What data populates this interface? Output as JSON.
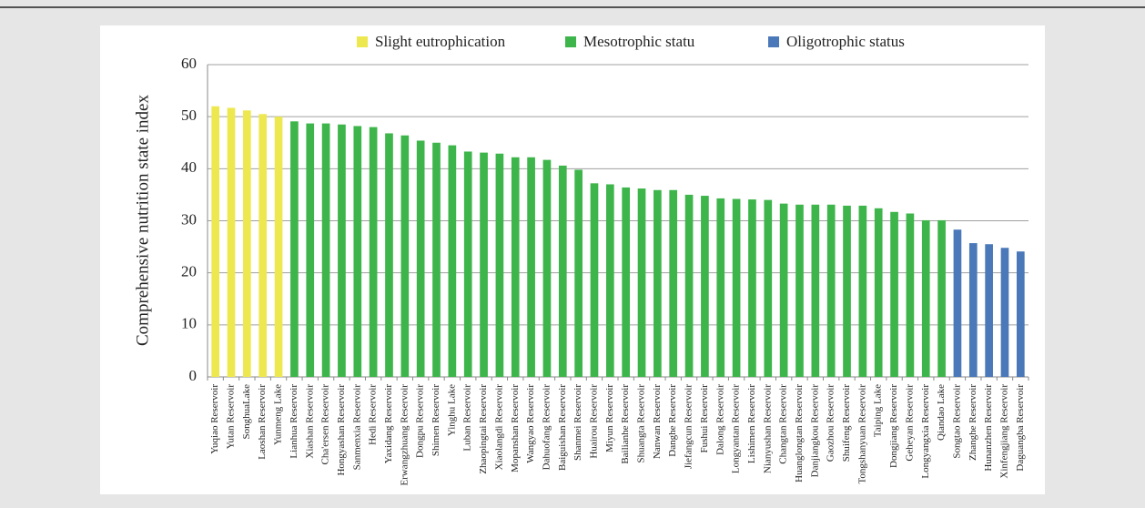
{
  "chart_data": {
    "type": "bar",
    "y_label": "Comprehensive nutrition state index",
    "categories": [
      "Yuqiao Reservoir",
      "Yutan Reservoir",
      "SonghuaLake",
      "Laoshan Reservoir",
      "Yunmeng Lake",
      "Lianhua Reservoir",
      "Xiashan Reservoir",
      "Cha'ersen Reservoir",
      "Hongyashan Reservoir",
      "Sanmenxia Reservoir",
      "Hedi Reservoir",
      "Yaxidang Reservoir",
      "Erwangzhuang Reservoir",
      "Dongpu Reservoir",
      "Shimen Reservoir",
      "Yinghu Lake",
      "Luban Reservoir",
      "Zhaopingtai Reservoir",
      "Xiaolangdi Reservoir",
      "Mopanshan Reservoir",
      "Wangyao Reservoir",
      "Dahuofang Reservoir",
      "Baiguishan Reservoir",
      "Shanmei Reservoir",
      "Huairou Reservoir",
      "Miyun Reservoir",
      "Bailianhe Reservoir",
      "Shuangta Reservoir",
      "Nanwan Reservoir",
      "Danghe Reservoir",
      "Jiefangcun Reservoir",
      "Fushui Reservoir",
      "Dalong Reservoir",
      "Longyantan Reservoir",
      "Lishimen Reservoir",
      "Nianyushan Reservoir",
      "Changtan Reservoir",
      "Huanglongtan Reservoir",
      "Danjiangkou Reservoir",
      "Gaozhou Reservoir",
      "Shuifeng Reservoir",
      "Tongshanyuan Reservoir",
      "Taiping Lake",
      "Dongjiang Reservoir",
      "Geheyan Reservoir",
      "Longyangxia Reservoir",
      "Qiandao Lake",
      "Songtao Reservoir",
      "Zhanghe Reservoir",
      "Hunanzhen Reservoir",
      "Xinfengjiang Reservoir",
      "Daguangba Reservoir"
    ],
    "series": [
      {
        "name": "Slight eutrophication",
        "color": "#ede84f",
        "values": [
          52.0,
          51.7,
          51.2,
          50.5,
          50.0,
          null,
          null,
          null,
          null,
          null,
          null,
          null,
          null,
          null,
          null,
          null,
          null,
          null,
          null,
          null,
          null,
          null,
          null,
          null,
          null,
          null,
          null,
          null,
          null,
          null,
          null,
          null,
          null,
          null,
          null,
          null,
          null,
          null,
          null,
          null,
          null,
          null,
          null,
          null,
          null,
          null,
          null,
          null,
          null,
          null,
          null,
          null
        ]
      },
      {
        "name": "Mesotrophic statu",
        "color": "#3db54a",
        "values": [
          null,
          null,
          null,
          null,
          null,
          49.1,
          48.7,
          48.7,
          48.5,
          48.2,
          48.0,
          46.8,
          46.4,
          45.4,
          45.0,
          44.5,
          43.3,
          43.1,
          42.9,
          42.2,
          42.2,
          41.7,
          40.6,
          39.8,
          37.2,
          37.0,
          36.4,
          36.2,
          35.9,
          35.9,
          35.0,
          34.8,
          34.3,
          34.2,
          34.1,
          34.0,
          33.3,
          33.1,
          33.1,
          33.1,
          32.9,
          32.9,
          32.4,
          31.7,
          31.4,
          30.1,
          30.1,
          null,
          null,
          null,
          null,
          null
        ]
      },
      {
        "name": "Oligotrophic status",
        "color": "#4a78b8",
        "values": [
          null,
          null,
          null,
          null,
          null,
          null,
          null,
          null,
          null,
          null,
          null,
          null,
          null,
          null,
          null,
          null,
          null,
          null,
          null,
          null,
          null,
          null,
          null,
          null,
          null,
          null,
          null,
          null,
          null,
          null,
          null,
          null,
          null,
          null,
          null,
          null,
          null,
          null,
          null,
          null,
          null,
          null,
          null,
          null,
          null,
          null,
          null,
          28.3,
          25.7,
          25.5,
          24.8,
          24.1
        ]
      }
    ],
    "ylim": [
      0,
      60
    ],
    "yticks": [
      0,
      10,
      20,
      30,
      40,
      50,
      60
    ],
    "grid": true,
    "legend": "top"
  }
}
